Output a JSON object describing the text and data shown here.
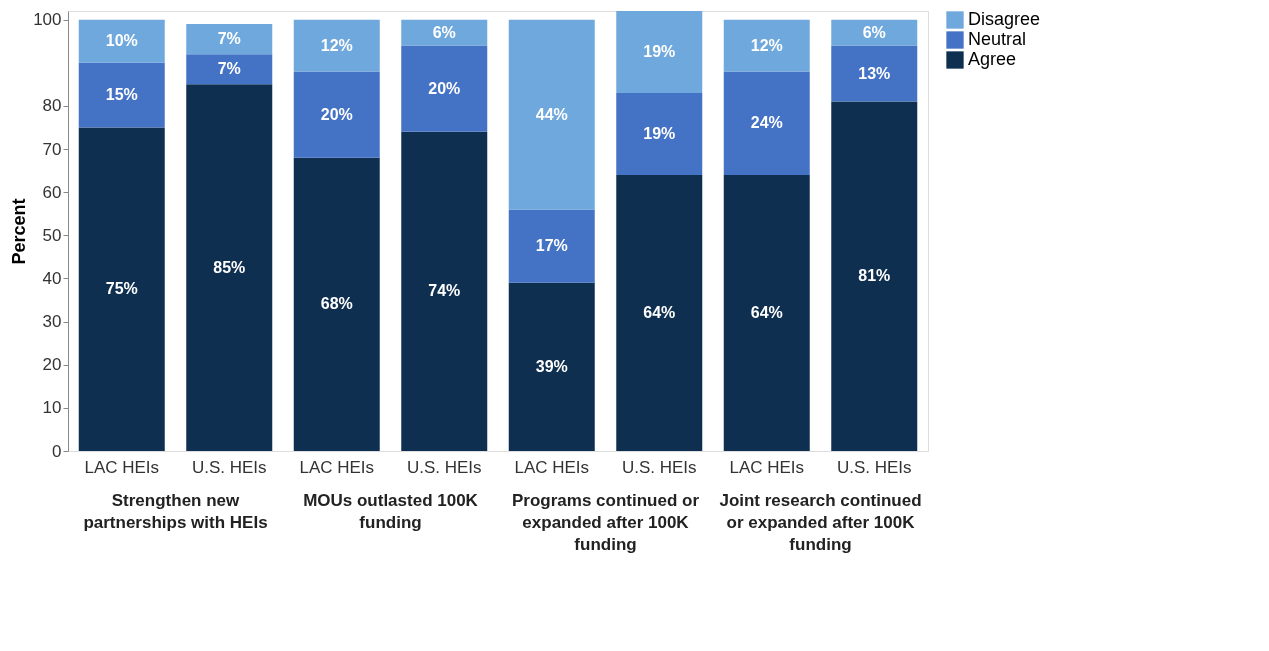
{
  "chart_data": {
    "type": "bar",
    "stacked": true,
    "ylabel": "Percent",
    "categories": [
      "LAC HEIs",
      "U.S. HEIs",
      "LAC HEIs",
      "U.S. HEIs",
      "LAC HEIs",
      "U.S. HEIs",
      "LAC HEIs",
      "U.S. HEIs"
    ],
    "series": [
      {
        "name": "Agree",
        "color": "#0f2f50",
        "values": [
          75,
          85,
          68,
          74,
          39,
          64,
          64,
          81
        ],
        "value_labels": [
          "75%",
          "85%",
          "68%",
          "74%",
          "39%",
          "64%",
          "64%",
          "81%"
        ]
      },
      {
        "name": "Neutral",
        "color": "#4472c4",
        "values": [
          15,
          7,
          20,
          20,
          17,
          19,
          24,
          13
        ],
        "value_labels": [
          "15%",
          "7%",
          "20%",
          "20%",
          "17%",
          "19%",
          "24%",
          "13%"
        ]
      },
      {
        "name": "Disagree",
        "color": "#6fa8dc",
        "values": [
          10,
          7,
          12,
          6,
          44,
          19,
          12,
          6
        ],
        "value_labels": [
          "10%",
          "7%",
          "12%",
          "6%",
          "44%",
          "19%",
          "12%",
          "6%"
        ]
      }
    ],
    "ylim": [
      0,
      102
    ],
    "yticks": [
      0,
      10,
      20,
      30,
      40,
      50,
      60,
      70,
      80,
      100
    ],
    "grid": false,
    "legend": "right",
    "annotations": [
      "Strengthen new partnerships with HEIs",
      "MOUs outlasted 100K funding",
      "Programs continued or expanded after 100K funding",
      "Joint research continued or expanded after 100K funding"
    ]
  }
}
